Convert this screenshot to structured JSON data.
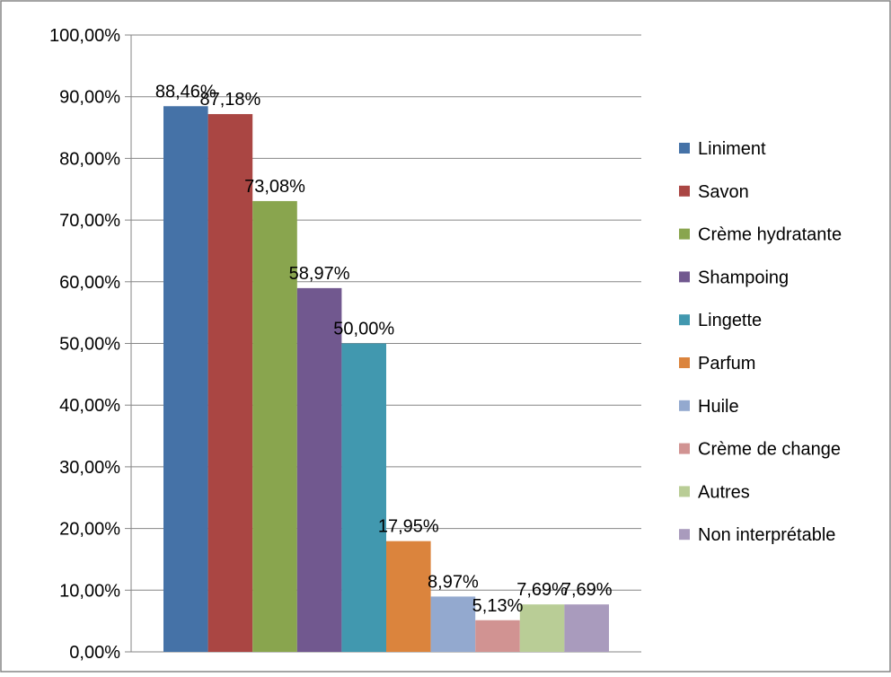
{
  "chart_data": {
    "type": "bar",
    "title": "",
    "xlabel": "",
    "ylabel": "",
    "ylim": [
      0,
      100
    ],
    "y_ticks": [
      0,
      10,
      20,
      30,
      40,
      50,
      60,
      70,
      80,
      90,
      100
    ],
    "y_tick_labels": [
      "0,00%",
      "10,00%",
      "20,00%",
      "30,00%",
      "40,00%",
      "50,00%",
      "60,00%",
      "70,00%",
      "80,00%",
      "90,00%",
      "100,00%"
    ],
    "grid": "horizontal",
    "legend_position": "right",
    "series": [
      {
        "name": "Liniment",
        "value": 88.46,
        "label": "88,46%",
        "color": "#4572A7"
      },
      {
        "name": "Savon",
        "value": 87.18,
        "label": "87,18%",
        "color": "#AA4643"
      },
      {
        "name": "Crème hydratante",
        "value": 73.08,
        "label": "73,08%",
        "color": "#89A54E"
      },
      {
        "name": "Shampoing",
        "value": 58.97,
        "label": "58,97%",
        "color": "#71588F"
      },
      {
        "name": "Lingette",
        "value": 50.0,
        "label": "50,00%",
        "color": "#4198AF"
      },
      {
        "name": "Parfum",
        "value": 17.95,
        "label": "17,95%",
        "color": "#DB843D"
      },
      {
        "name": "Huile",
        "value": 8.97,
        "label": "8,97%",
        "color": "#93A9CF"
      },
      {
        "name": "Crème de change",
        "value": 5.13,
        "label": "5,13%",
        "color": "#D19392"
      },
      {
        "name": "Autres",
        "value": 7.69,
        "label": "7,69%",
        "color": "#B9CD96"
      },
      {
        "name": "Non interprétable",
        "value": 7.69,
        "label": "7,69%",
        "color": "#A99BBD"
      }
    ]
  }
}
